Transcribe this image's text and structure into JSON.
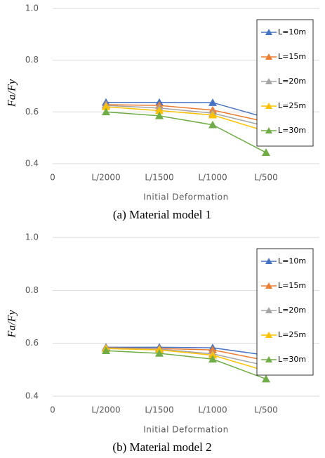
{
  "chart_data": [
    {
      "type": "line",
      "caption": "(a) Material model 1",
      "x_label": "Initial Deformation",
      "y_label": "Fa/Fy",
      "categories": [
        "0",
        "L/2000",
        "L/1500",
        "L/1000",
        "L/500",
        null
      ],
      "ylim": [
        0.4,
        1
      ],
      "yticks": [
        0.4,
        0.6,
        0.8,
        {
          "value": 1,
          "label": "1.0"
        }
      ],
      "grid": true,
      "legend": "upper right",
      "series": [
        {
          "name": "L=10m",
          "color": "#4472c4",
          "values": [
            null,
            0.637,
            0.637,
            0.636,
            0.578,
            null
          ]
        },
        {
          "name": "L=15m",
          "color": "#ed7d31",
          "values": [
            null,
            0.628,
            0.625,
            0.607,
            0.562,
            null
          ]
        },
        {
          "name": "L=20m",
          "color": "#a5a5a5",
          "values": [
            null,
            0.625,
            0.615,
            0.595,
            0.545,
            null
          ]
        },
        {
          "name": "L=25m",
          "color": "#ffc000",
          "values": [
            null,
            0.62,
            0.605,
            0.588,
            0.525,
            null
          ]
        },
        {
          "name": "L=30m",
          "color": "#70ad47",
          "values": [
            null,
            0.6,
            0.585,
            0.55,
            0.443,
            null
          ]
        }
      ]
    },
    {
      "type": "line",
      "caption": "(b) Material model 2",
      "x_label": "Initial Deformation",
      "y_label": "Fa/Fy",
      "categories": [
        "0",
        "L/2000",
        "L/1500",
        "L/1000",
        "L/500",
        null
      ],
      "ylim": [
        0.4,
        1
      ],
      "yticks": [
        0.4,
        0.6,
        0.8,
        {
          "value": 1,
          "label": "1.0"
        }
      ],
      "grid": true,
      "legend": "upper right",
      "series": [
        {
          "name": "L=10m",
          "color": "#4472c4",
          "values": [
            null,
            0.585,
            0.585,
            0.583,
            0.555,
            null
          ]
        },
        {
          "name": "L=15m",
          "color": "#ed7d31",
          "values": [
            null,
            0.583,
            0.58,
            0.575,
            0.535,
            null
          ]
        },
        {
          "name": "L=20m",
          "color": "#a5a5a5",
          "values": [
            null,
            0.582,
            0.578,
            0.56,
            0.515,
            null
          ]
        },
        {
          "name": "L=25m",
          "color": "#ffc000",
          "values": [
            null,
            0.58,
            0.575,
            0.555,
            0.495,
            null
          ]
        },
        {
          "name": "L=30m",
          "color": "#70ad47",
          "values": [
            null,
            0.572,
            0.562,
            0.54,
            0.465,
            null
          ]
        }
      ]
    }
  ]
}
